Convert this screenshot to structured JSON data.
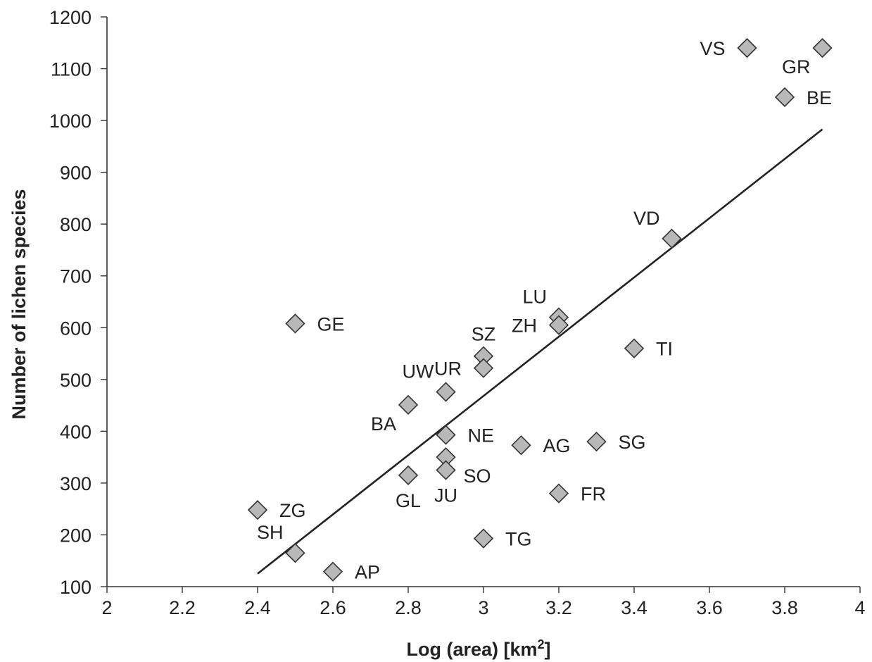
{
  "chart_data": {
    "type": "scatter",
    "title": "",
    "xlabel": "Log (area) [km",
    "xlabel_sup": "2",
    "xlabel_close": "]",
    "ylabel": "Number of lichen species",
    "xlim": [
      2,
      4
    ],
    "ylim": [
      100,
      1200
    ],
    "x_ticks": [
      "2",
      "2.2",
      "2.4",
      "2.6",
      "2.8",
      "3",
      "3.2",
      "3.4",
      "3.6",
      "3.8",
      "4"
    ],
    "y_ticks": [
      "100",
      "200",
      "300",
      "400",
      "500",
      "600",
      "700",
      "800",
      "900",
      "1000",
      "1100",
      "1200"
    ],
    "grid": false,
    "marker_color": "#b8b8b8",
    "points": [
      {
        "label": "VS",
        "x": 3.7,
        "y": 1140,
        "label_side": "left"
      },
      {
        "label": "GR",
        "x": 3.9,
        "y": 1140,
        "label_side": "below-left"
      },
      {
        "label": "BE",
        "x": 3.8,
        "y": 1045,
        "label_side": "right"
      },
      {
        "label": "VD",
        "x": 3.5,
        "y": 772,
        "label_side": "above-left"
      },
      {
        "label": "LU",
        "x": 3.2,
        "y": 620,
        "label_side": "above-left"
      },
      {
        "label": "ZH",
        "x": 3.2,
        "y": 605,
        "label_side": "left"
      },
      {
        "label": "TI",
        "x": 3.4,
        "y": 560,
        "label_side": "right"
      },
      {
        "label": "GE",
        "x": 2.5,
        "y": 608,
        "label_side": "right"
      },
      {
        "label": "SZ",
        "x": 3.0,
        "y": 545,
        "label_side": "above"
      },
      {
        "label": "UR",
        "x": 3.0,
        "y": 522,
        "label_side": "left"
      },
      {
        "label": "UW",
        "x": 2.9,
        "y": 476,
        "label_side": "above-left"
      },
      {
        "label": "BA",
        "x": 2.8,
        "y": 451,
        "label_side": "below-left"
      },
      {
        "label": "NE",
        "x": 2.9,
        "y": 393,
        "label_side": "right"
      },
      {
        "label": "SO",
        "x": 2.9,
        "y": 350,
        "label_side": "below-right"
      },
      {
        "label": "JU",
        "x": 2.9,
        "y": 325,
        "label_side": "below"
      },
      {
        "label": "AG",
        "x": 3.1,
        "y": 373,
        "label_side": "right"
      },
      {
        "label": "SG",
        "x": 3.3,
        "y": 380,
        "label_side": "right"
      },
      {
        "label": "GL",
        "x": 2.8,
        "y": 315,
        "label_side": "below"
      },
      {
        "label": "FR",
        "x": 3.2,
        "y": 280,
        "label_side": "right"
      },
      {
        "label": "ZG",
        "x": 2.4,
        "y": 248,
        "label_side": "right"
      },
      {
        "label": "TG",
        "x": 3.0,
        "y": 193,
        "label_side": "right"
      },
      {
        "label": "SH",
        "x": 2.5,
        "y": 165,
        "label_side": "above-left"
      },
      {
        "label": "AP",
        "x": 2.6,
        "y": 129,
        "label_side": "right"
      }
    ],
    "trendline": {
      "x": [
        2.4,
        3.9
      ],
      "y": [
        125,
        983
      ]
    }
  }
}
